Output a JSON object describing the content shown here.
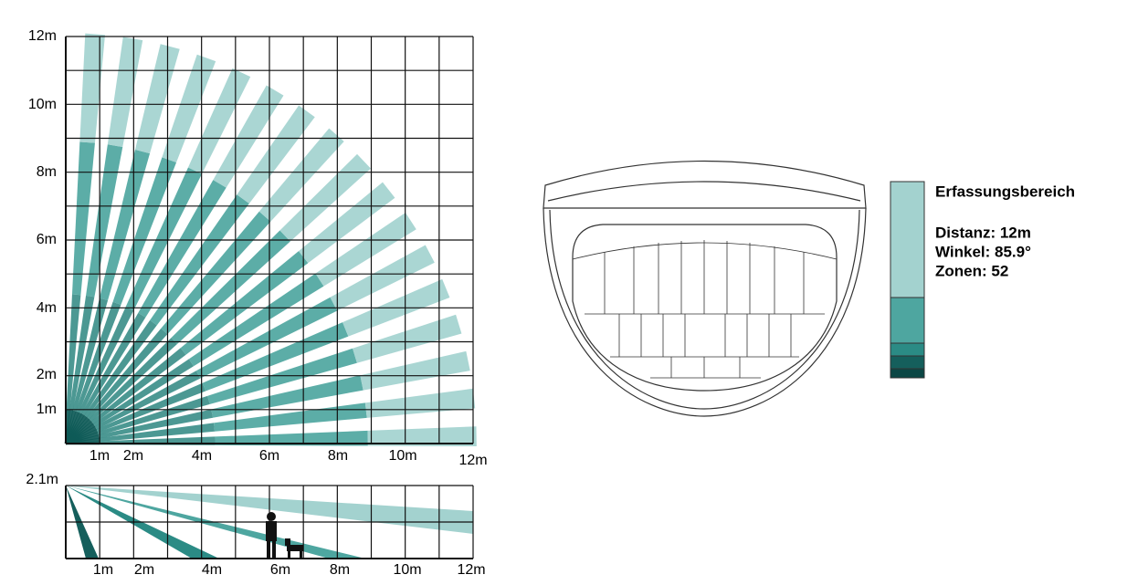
{
  "top_view": {
    "y_labels": [
      "12m",
      "10m",
      "8m",
      "6m",
      "4m",
      "2m",
      "1m"
    ],
    "x_labels": [
      "1m",
      "2m",
      "4m",
      "6m",
      "8m",
      "10m",
      "12m"
    ]
  },
  "side_view": {
    "height_label": "2.1m",
    "x_labels": [
      "1m",
      "2m",
      "4m",
      "6m",
      "8m",
      "10m",
      "12m"
    ]
  },
  "legend": {
    "title": "Erfassungsbereich",
    "lines": [
      "Distanz: 12m",
      "Winkel: 85.9°",
      "Zonen: 52"
    ]
  }
}
